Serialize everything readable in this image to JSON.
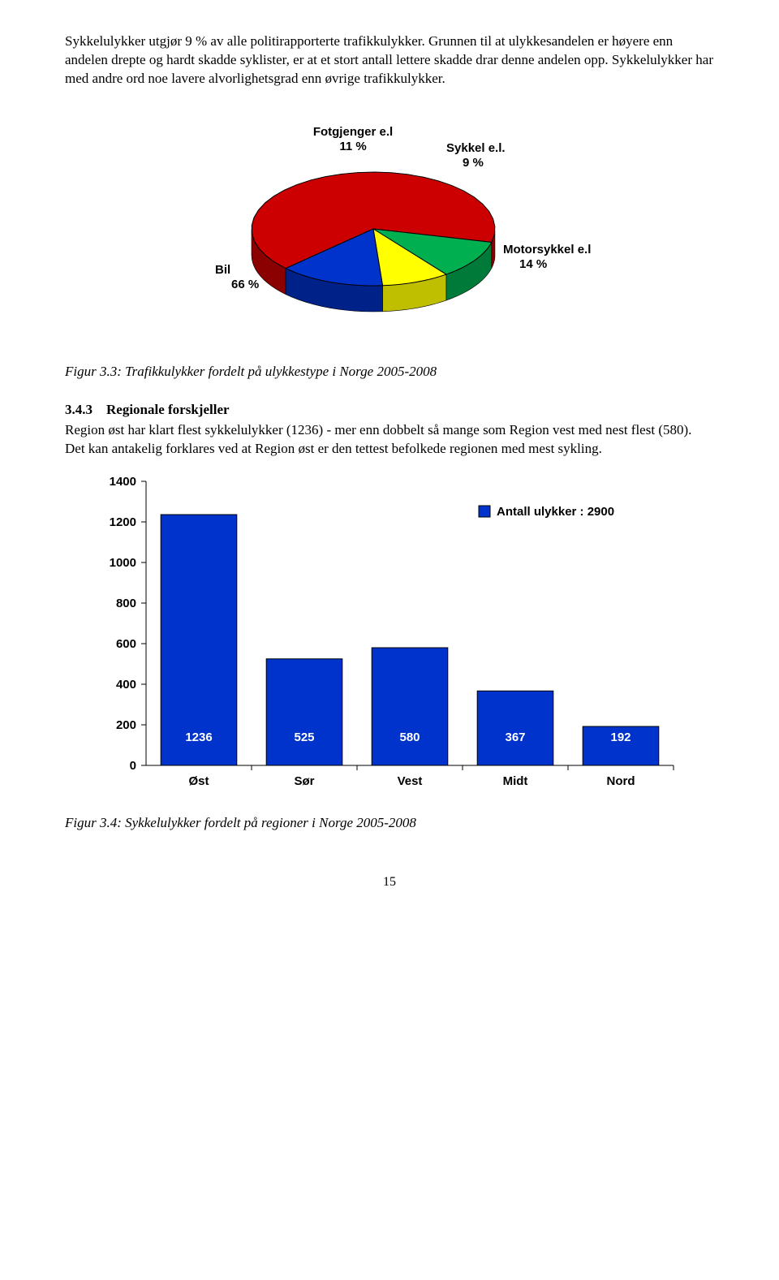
{
  "para1": "Sykkelulykker utgjør 9 % av alle politirapporterte trafikkulykker. Grunnen til at ulykkesandelen er høyere enn andelen drepte og hardt skadde syklister, er at et stort antall lettere skadde drar denne andelen opp. Sykkelulykker har med andre ord noe lavere alvorlighetsgrad enn øvrige trafikkulykker.",
  "pie": {
    "slices": [
      {
        "label": "Bil",
        "subLabel": "66 %",
        "value": 66,
        "color": "#cc0000",
        "sideColor": "#8b0000"
      },
      {
        "label": "Fotgjenger e.l",
        "subLabel": "11 %",
        "value": 11,
        "color": "#00b050",
        "sideColor": "#007a38"
      },
      {
        "label": "Sykkel e.l.",
        "subLabel": "9 %",
        "value": 9,
        "color": "#ffff00",
        "sideColor": "#bfbf00"
      },
      {
        "label": "Motorsykkel e.l",
        "subLabel": "14 %",
        "value": 14,
        "color": "#0033cc",
        "sideColor": "#002288"
      }
    ],
    "label_font": "Arial, sans-serif",
    "label_size": 15,
    "label_weight": "bold",
    "separator_color": "#000000"
  },
  "caption_pie": "Figur 3.3: Trafikkulykker fordelt på ulykkestype i Norge 2005-2008",
  "sub_num": "3.4.3",
  "sub_title": "Regionale forskjeller",
  "para2": "Region øst har klart flest sykkelulykker (1236) - mer enn dobbelt så mange som Region vest med nest flest (580). Det kan antakelig forklares ved at Region øst er den tettest befolkede regionen med mest sykling.",
  "bar": {
    "categories": [
      "Øst",
      "Sør",
      "Vest",
      "Midt",
      "Nord"
    ],
    "values": [
      1236,
      525,
      580,
      367,
      192
    ],
    "bar_color": "#0033cc",
    "bar_border": "#000000",
    "ylim": [
      0,
      1400
    ],
    "ytick_step": 200,
    "yticks": [
      0,
      200,
      400,
      600,
      800,
      1000,
      1200,
      1400
    ],
    "background_color": "#ffffff",
    "grid_color": "#000000",
    "bar_width": 0.72,
    "legend_text": "Antall ulykker  :  2900",
    "legend_swatch": "#0033cc",
    "axis_font": "Arial, sans-serif",
    "axis_fontsize": 15,
    "axis_fontweight": "bold",
    "value_label_color": "#ffffff",
    "value_label_fontsize": 15,
    "value_label_fontweight": "bold"
  },
  "caption_bar": "Figur 3.4: Sykkelulykker fordelt på regioner i Norge 2005-2008",
  "page_number": "15"
}
